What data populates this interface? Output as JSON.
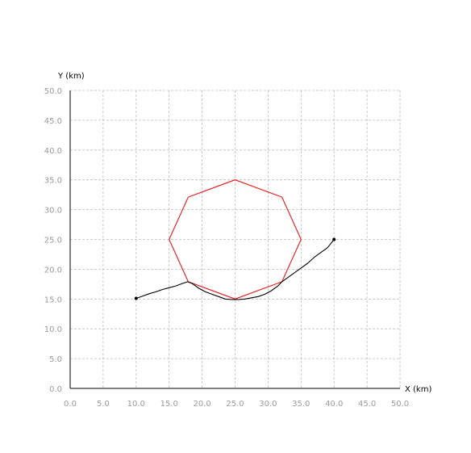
{
  "chart_data": {
    "type": "line",
    "xlabel": "X (km)",
    "ylabel": "Y (km)",
    "xlim": [
      0,
      50
    ],
    "ylim": [
      0,
      50
    ],
    "x_ticks": [
      "0.0",
      "5.0",
      "10.0",
      "15.0",
      "20.0",
      "25.0",
      "30.0",
      "35.0",
      "40.0",
      "45.0",
      "50.0"
    ],
    "y_ticks": [
      "0.0",
      "5.0",
      "10.0",
      "15.0",
      "20.0",
      "25.0",
      "30.0",
      "35.0",
      "40.0",
      "45.0",
      "50.0"
    ],
    "grid": true,
    "series": [
      {
        "color": "#e8191b",
        "closed": true,
        "points": [
          [
            25.0,
            35.0
          ],
          [
            32.1,
            32.1
          ],
          [
            35.0,
            25.0
          ],
          [
            32.1,
            17.9
          ],
          [
            25.0,
            15.0
          ],
          [
            17.9,
            17.9
          ],
          [
            15.0,
            25.0
          ],
          [
            17.9,
            32.1
          ]
        ]
      },
      {
        "color": "#000000",
        "closed": false,
        "endpoints": true,
        "points": [
          [
            10.0,
            15.1
          ],
          [
            11.0,
            15.5
          ],
          [
            12.0,
            15.9
          ],
          [
            13.0,
            16.2
          ],
          [
            14.0,
            16.6
          ],
          [
            15.0,
            16.9
          ],
          [
            16.0,
            17.2
          ],
          [
            17.0,
            17.6
          ],
          [
            17.8,
            17.9
          ],
          [
            18.5,
            17.6
          ],
          [
            19.5,
            16.8
          ],
          [
            20.5,
            16.2
          ],
          [
            21.5,
            15.8
          ],
          [
            22.5,
            15.4
          ],
          [
            23.5,
            15.0
          ],
          [
            24.5,
            14.9
          ],
          [
            25.5,
            14.9
          ],
          [
            26.5,
            15.0
          ],
          [
            27.5,
            15.2
          ],
          [
            28.5,
            15.4
          ],
          [
            29.5,
            15.8
          ],
          [
            30.5,
            16.4
          ],
          [
            31.5,
            17.2
          ],
          [
            32.1,
            17.9
          ],
          [
            33.0,
            18.6
          ],
          [
            34.0,
            19.4
          ],
          [
            35.0,
            20.2
          ],
          [
            36.0,
            21.0
          ],
          [
            37.0,
            22.0
          ],
          [
            38.0,
            22.8
          ],
          [
            39.0,
            23.6
          ],
          [
            39.5,
            24.3
          ],
          [
            40.0,
            25.0
          ]
        ]
      }
    ]
  }
}
